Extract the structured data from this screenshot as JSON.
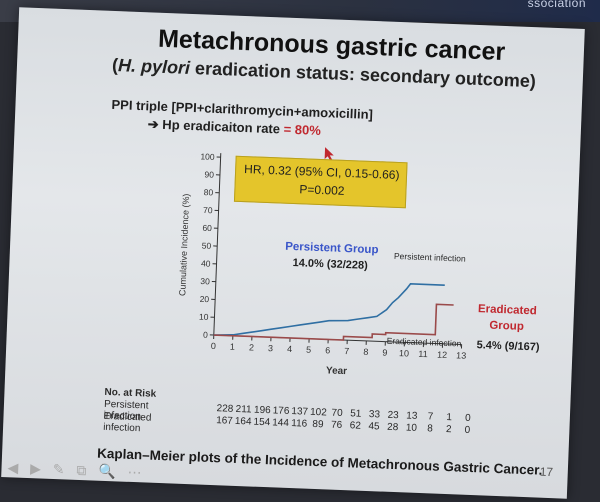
{
  "header_strip": {
    "text": "ssociation"
  },
  "slide": {
    "title": "Metachronous gastric cancer",
    "subtitle_prefix": "(",
    "subtitle_italic": "H. pylori",
    "subtitle_rest": " eradication status: secondary outcome)",
    "ppi_line1": "PPI triple [PPI+clarithromycin+amoxicillin]",
    "ppi_line2_arrow": "➔",
    "ppi_line2_text": " Hp eradicaiton rate ",
    "ppi_line2_value": "= 80%",
    "hr_line1": "HR, 0.32 (95% CI, 0.15-0.66)",
    "hr_line2": "P=0.002",
    "caption": "Kaplan–Meier plots of the Incidence of Metachronous Gastric Cancer.",
    "page_number": "17",
    "nav_icons": "◀ ▶ ✎ ⧉ 🔍 ⋯"
  },
  "risk_table": {
    "title": "No. at Risk",
    "rows": [
      {
        "label": "Persistent infection",
        "values": [
          "228",
          "211",
          "196",
          "176",
          "137",
          "102",
          "70",
          "51",
          "33",
          "23",
          "13",
          "7",
          "1",
          "0"
        ]
      },
      {
        "label": "Eradicated infection",
        "values": [
          "167",
          "164",
          "154",
          "144",
          "116",
          "89",
          "76",
          "62",
          "45",
          "28",
          "10",
          "8",
          "2",
          "0"
        ]
      }
    ]
  },
  "chart_data": {
    "type": "line",
    "ylabel": "Cumulative Incidence (%)",
    "xlabel": "Year",
    "xlim": [
      0,
      13
    ],
    "ylim": [
      0,
      100
    ],
    "x_ticks": [
      0,
      1,
      2,
      3,
      4,
      5,
      6,
      7,
      8,
      9,
      10,
      11,
      12,
      13
    ],
    "y_ticks": [
      0,
      10,
      20,
      30,
      40,
      50,
      60,
      70,
      80,
      90,
      100
    ],
    "series": [
      {
        "name": "Persistent infection",
        "color": "#2f6fa3",
        "points": [
          [
            0,
            0
          ],
          [
            1,
            0.5
          ],
          [
            1.5,
            1.5
          ],
          [
            2,
            2.5
          ],
          [
            2.5,
            3.5
          ],
          [
            3,
            4.5
          ],
          [
            3.5,
            5.5
          ],
          [
            4,
            6.5
          ],
          [
            4.5,
            7.5
          ],
          [
            5,
            8.5
          ],
          [
            5.5,
            9.5
          ],
          [
            6,
            10.5
          ],
          [
            7,
            11
          ],
          [
            7.5,
            12
          ],
          [
            8,
            13
          ],
          [
            8.5,
            14
          ],
          [
            9,
            18
          ],
          [
            9.3,
            22
          ],
          [
            9.6,
            25
          ],
          [
            10,
            30
          ],
          [
            10.2,
            33
          ],
          [
            11,
            33
          ],
          [
            12,
            33
          ]
        ]
      },
      {
        "name": "Eradicated infection",
        "color": "#9a4a4a",
        "points": [
          [
            0,
            0
          ],
          [
            6.8,
            0
          ],
          [
            6.8,
            2
          ],
          [
            8.3,
            2
          ],
          [
            8.3,
            4
          ],
          [
            9,
            4
          ],
          [
            9,
            5
          ],
          [
            11.6,
            5
          ],
          [
            11.6,
            22
          ],
          [
            12.5,
            22
          ]
        ]
      }
    ],
    "annotations": [
      {
        "text": "Persistent Group",
        "color": "#3a56c9"
      },
      {
        "text": "14.0% (32/228)",
        "color": "#1f1f1f"
      },
      {
        "text": "Persistent infection",
        "color": "#2a2a2a"
      },
      {
        "text": "Eradicated",
        "color": "#c0282f"
      },
      {
        "text": "Group",
        "color": "#c0282f"
      },
      {
        "text": "Eradicated infection",
        "color": "#2a2a2a"
      },
      {
        "text": "5.4% (9/167)",
        "color": "#1f1f1f"
      }
    ]
  }
}
